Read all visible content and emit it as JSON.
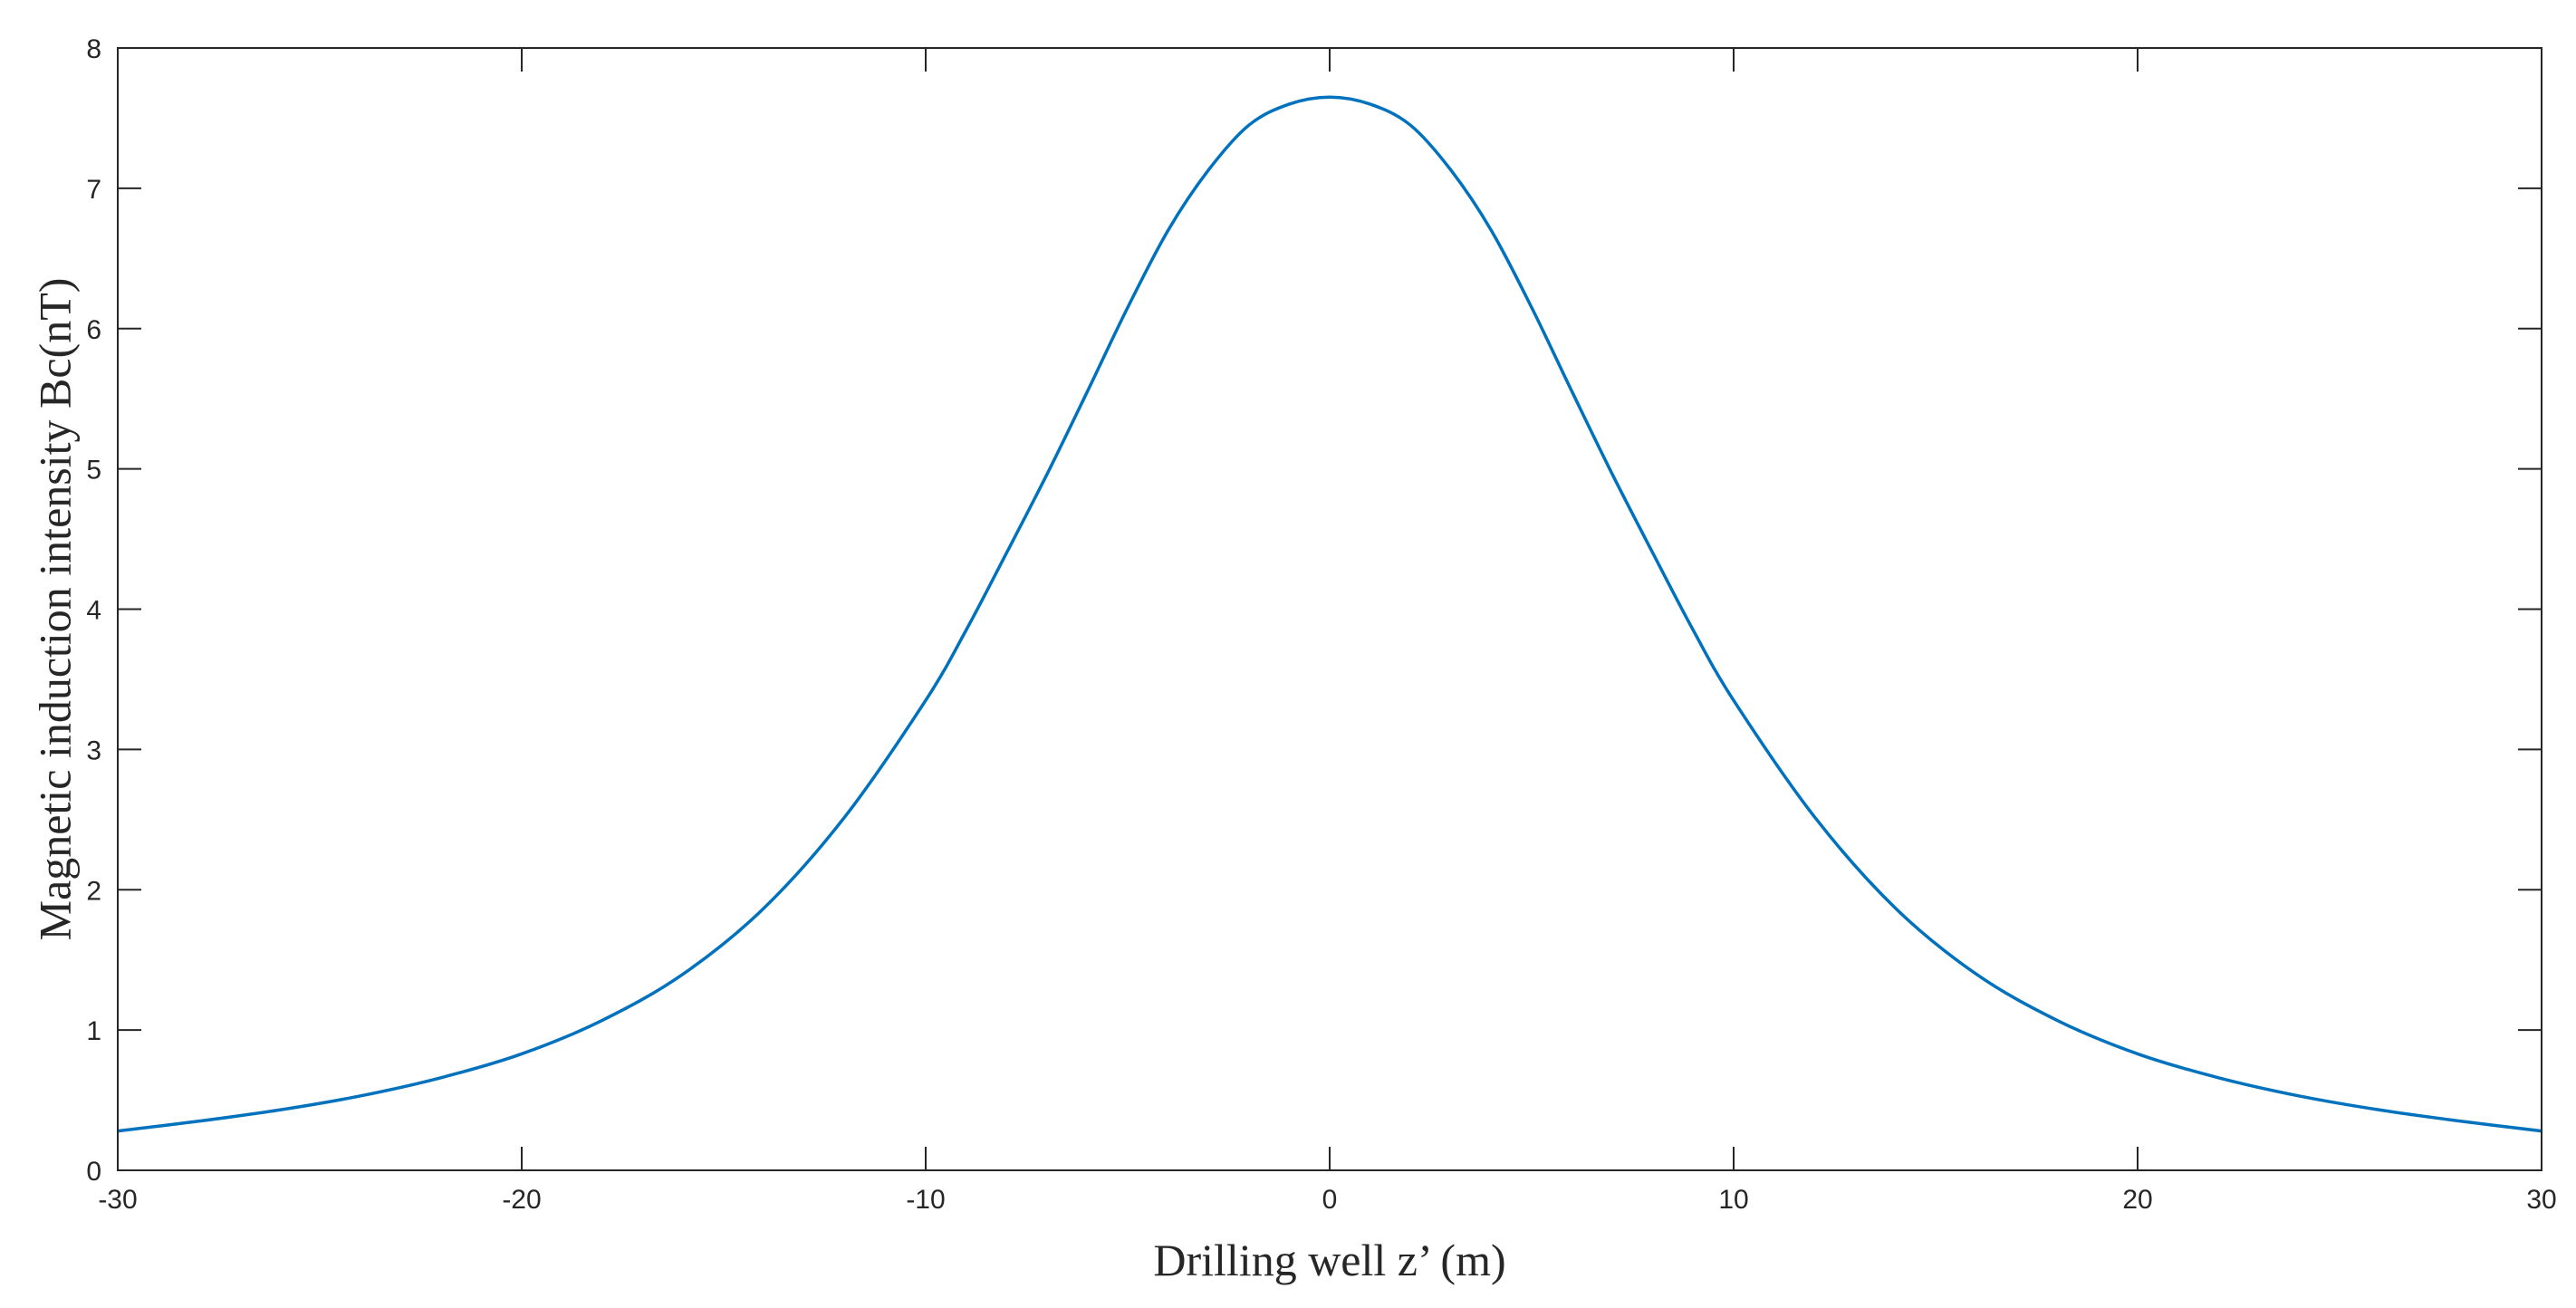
{
  "chart_data": {
    "type": "line",
    "title": "",
    "xlabel": "Drilling well z’ (m)",
    "ylabel": "Magnetic induction intensity Bc(nT)",
    "xlim": [
      -30,
      30
    ],
    "ylim": [
      0,
      8
    ],
    "xticks": [
      -30,
      -20,
      -10,
      0,
      10,
      20,
      30
    ],
    "yticks": [
      0,
      1,
      2,
      3,
      4,
      5,
      6,
      7,
      8
    ],
    "xtick_labels": [
      "-30",
      "-20",
      "-10",
      "0",
      "10",
      "20",
      "30"
    ],
    "ytick_labels": [
      "0",
      "1",
      "2",
      "3",
      "4",
      "5",
      "6",
      "7",
      "8"
    ],
    "grid": false,
    "legend": "none",
    "series": [
      {
        "color": "#0072BD",
        "x": [
          -30,
          -28,
          -26,
          -24,
          -22,
          -20,
          -18,
          -16,
          -14,
          -12,
          -10,
          -9,
          -8,
          -7,
          -6,
          -5,
          -4,
          -3,
          -2,
          -1,
          0,
          1,
          2,
          3,
          4,
          5,
          6,
          7,
          8,
          9,
          10,
          12,
          14,
          16,
          18,
          20,
          22,
          24,
          26,
          28,
          30
        ],
        "y": [
          0.28,
          0.35,
          0.43,
          0.53,
          0.66,
          0.83,
          1.07,
          1.4,
          1.87,
          2.52,
          3.35,
          3.85,
          4.4,
          4.96,
          5.55,
          6.15,
          6.7,
          7.13,
          7.45,
          7.6,
          7.65,
          7.6,
          7.45,
          7.13,
          6.7,
          6.15,
          5.55,
          4.96,
          4.4,
          3.85,
          3.35,
          2.52,
          1.87,
          1.4,
          1.07,
          0.83,
          0.66,
          0.53,
          0.43,
          0.35,
          0.28
        ]
      }
    ]
  }
}
